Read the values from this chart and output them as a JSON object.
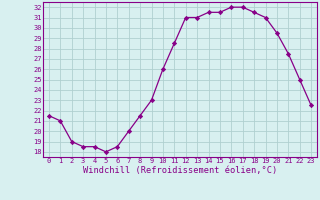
{
  "hours": [
    0,
    1,
    2,
    3,
    4,
    5,
    6,
    7,
    8,
    9,
    10,
    11,
    12,
    13,
    14,
    15,
    16,
    17,
    18,
    19,
    20,
    21,
    22,
    23
  ],
  "values": [
    21.5,
    21.0,
    19.0,
    18.5,
    18.5,
    18.0,
    18.5,
    20.0,
    21.5,
    23.0,
    26.0,
    28.5,
    31.0,
    31.0,
    31.5,
    31.5,
    32.0,
    32.0,
    31.5,
    31.0,
    29.5,
    27.5,
    25.0,
    22.5
  ],
  "line_color": "#880088",
  "marker": "D",
  "marker_size": 2.2,
  "bg_color": "#d8f0f0",
  "grid_color": "#b0d0d0",
  "xlabel": "Windchill (Refroidissement éolien,°C)",
  "xlim": [
    -0.5,
    23.5
  ],
  "ylim": [
    17.5,
    32.5
  ],
  "yticks": [
    18,
    19,
    20,
    21,
    22,
    23,
    24,
    25,
    26,
    27,
    28,
    29,
    30,
    31,
    32
  ],
  "xticks": [
    0,
    1,
    2,
    3,
    4,
    5,
    6,
    7,
    8,
    9,
    10,
    11,
    12,
    13,
    14,
    15,
    16,
    17,
    18,
    19,
    20,
    21,
    22,
    23
  ],
  "tick_color": "#880088",
  "spine_color": "#880088",
  "tick_fontsize": 5.0,
  "xlabel_fontsize": 6.2
}
